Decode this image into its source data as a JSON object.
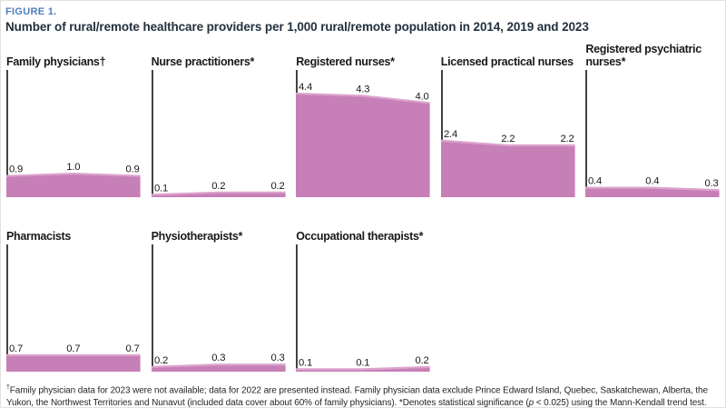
{
  "header": {
    "figure_label": "FIGURE 1.",
    "title": "Number of rural/remote healthcare providers per 1,000 rural/remote population in 2014, 2019 and 2023"
  },
  "colors": {
    "accent_blue": "#4D7EBD",
    "title_navy": "#22303E",
    "area_fill": "#C77FB7",
    "area_line": "#DCA3CC",
    "axis": "#3F3F3F",
    "label_text": "#1A1A1A"
  },
  "chart_data": {
    "type": "area",
    "categories": [
      2014,
      2019,
      2023
    ],
    "ylim": [
      0,
      5.4
    ],
    "grid": false,
    "legend": "none",
    "value_labels": "one decimal shown at each data point",
    "series": [
      {
        "name": "Family physicians†",
        "values": [
          0.9,
          1.0,
          0.9
        ],
        "row": 1
      },
      {
        "name": "Nurse practitioners*",
        "values": [
          0.1,
          0.2,
          0.2
        ],
        "row": 1
      },
      {
        "name": "Registered nurses*",
        "values": [
          4.4,
          4.3,
          4.0
        ],
        "row": 1
      },
      {
        "name": "Licensed practical nurses",
        "values": [
          2.4,
          2.2,
          2.2
        ],
        "row": 1
      },
      {
        "name": "Registered psychiatric nurses*",
        "values": [
          0.4,
          0.4,
          0.3
        ],
        "row": 1
      },
      {
        "name": "Pharmacists",
        "values": [
          0.7,
          0.7,
          0.7
        ],
        "row": 2
      },
      {
        "name": "Physiotherapists*",
        "values": [
          0.2,
          0.3,
          0.3
        ],
        "row": 2
      },
      {
        "name": "Occupational therapists*",
        "values": [
          0.1,
          0.1,
          0.2
        ],
        "row": 2
      }
    ]
  },
  "footnote": {
    "dagger": "†",
    "part1": "Family physician data for 2023 were not available; data for 2022 are presented instead. Family physician data exclude Prince Edward Island, Quebec, Saskatchewan, Alberta, the Yukon, the Northwest Territories and Nunavut (included data cover about 60% of family physicians). *Denotes statistical significance (",
    "p_symbol": "p",
    "part2": " < 0.025) using the Mann-Kendall trend test."
  }
}
